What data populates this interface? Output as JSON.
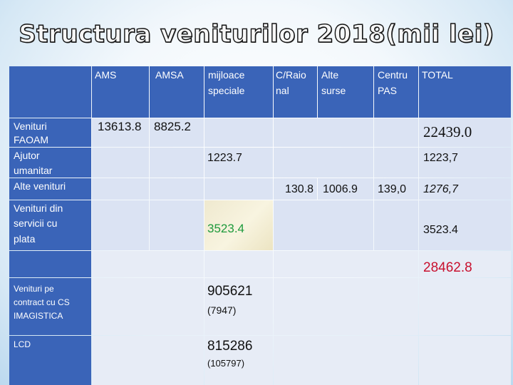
{
  "title": "Structura veniturilor 2018(mii lei)",
  "header": {
    "c1": "AMS",
    "c2": "AMSA",
    "c3_l1": "mijloace",
    "c3_l2": "speciale",
    "c4_l1": "C/Raio",
    "c4_l2": "nal",
    "c5_l1": "Alte",
    "c5_l2": "surse",
    "c6_l1": "Centru",
    "c6_l2": "PAS",
    "c7": "TOTAL"
  },
  "row_labels": {
    "venituri_faoam_l1": "Venituri",
    "venituri_faoam_l2": "FAOAM",
    "ajutor_l1": "Ajutor",
    "ajutor_l2": "umanitar",
    "alte_venituri": "Alte venituri",
    "servicii_l1": "Venituri din",
    "servicii_l2": "servicii cu",
    "servicii_l3": "plata",
    "contract_l1": "Venituri pe",
    "contract_l2": "contract cu CS",
    "contract_l3": "IMAGISTICA",
    "lcd": "LCD"
  },
  "values": {
    "faoam_ams": "13613.8",
    "faoam_amsa": "8825.2",
    "faoam_total": "22439.0",
    "ajutor_ms": "1223.7",
    "ajutor_total": "1223,7",
    "alte_craional": "130.8",
    "alte_surse": "1006.9",
    "alte_pas": "139,0",
    "alte_total": "1276,7",
    "servicii_ms": "3523.4",
    "servicii_total": "3523.4",
    "grand_total": "28462.8",
    "contract_ms": "905621",
    "contract_ms_sub": "(7947)",
    "lcd_ms": "815286",
    "lcd_ms_sub": "(105797)"
  },
  "colors": {
    "dark_cell": "#3a64b8",
    "light_cell": "#dbe3f3",
    "highlight_cell": "#f2ecd0",
    "green_text": "#1e9a3c",
    "red_text": "#c8102e"
  }
}
